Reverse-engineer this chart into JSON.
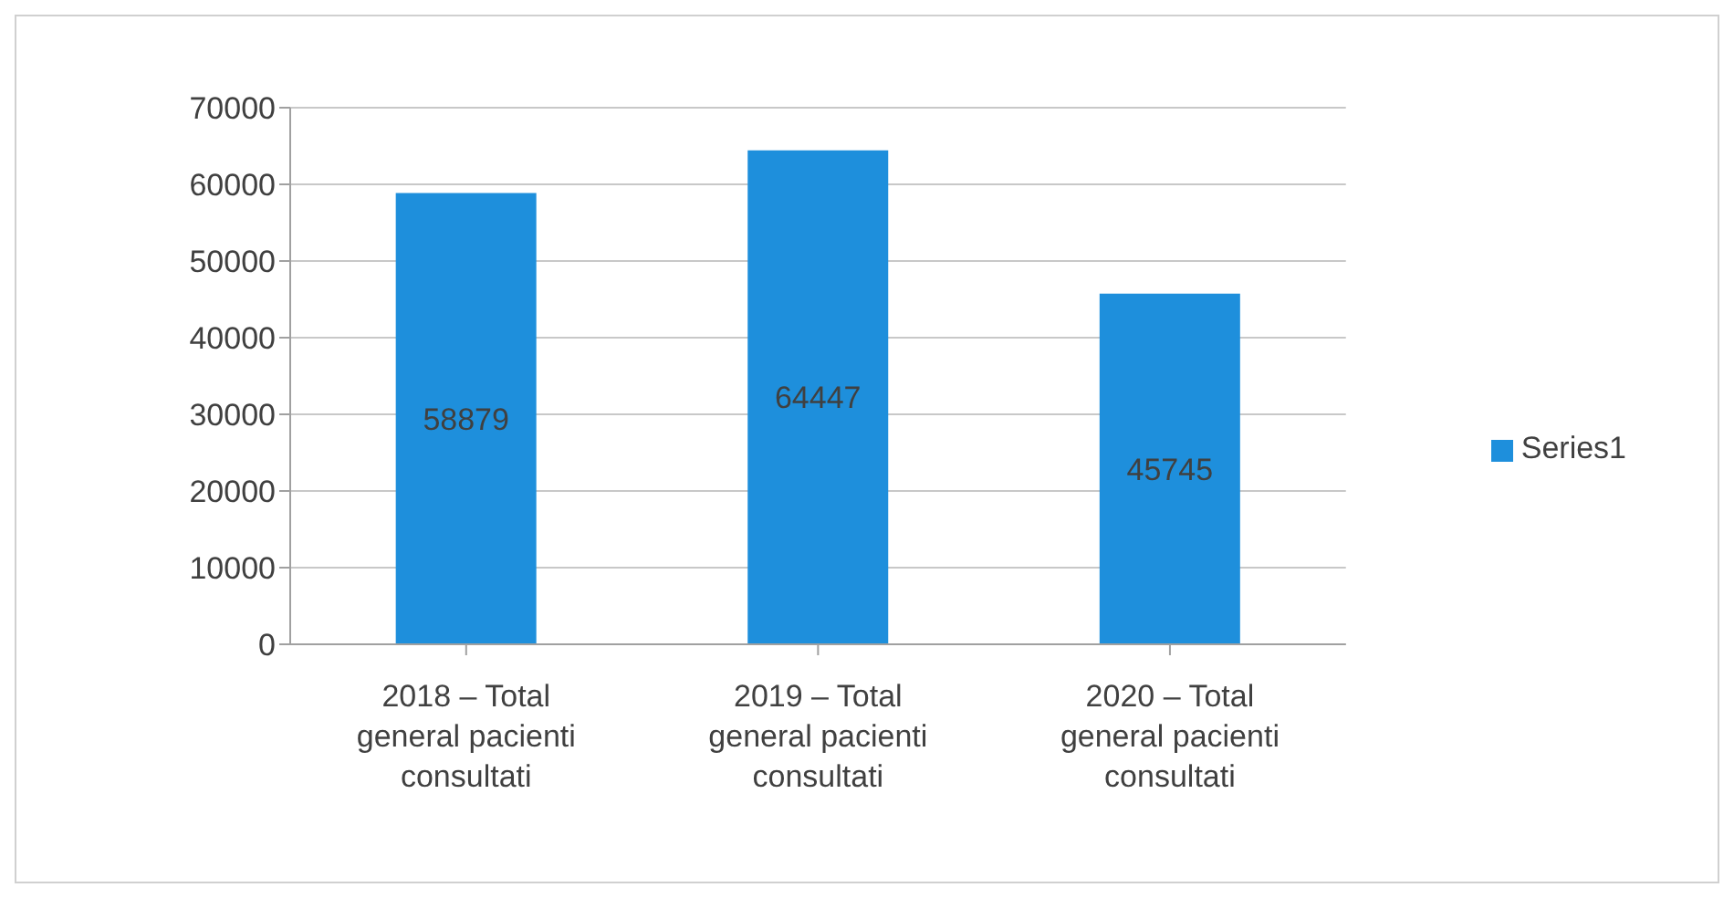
{
  "chart_data": {
    "type": "bar",
    "categories": [
      "2018 – Total general pacienti consultati",
      "2019 – Total general pacienti consultati",
      "2020 – Total general pacienti consultati"
    ],
    "series": [
      {
        "name": "Series1",
        "color": "#1e8fdc",
        "values": [
          58879,
          64447,
          45745
        ]
      }
    ],
    "ylim": [
      0,
      70000
    ],
    "yticks": [
      0,
      10000,
      20000,
      30000,
      40000,
      50000,
      60000,
      70000
    ],
    "grid": "y",
    "legend": "right",
    "data_labels": true
  }
}
